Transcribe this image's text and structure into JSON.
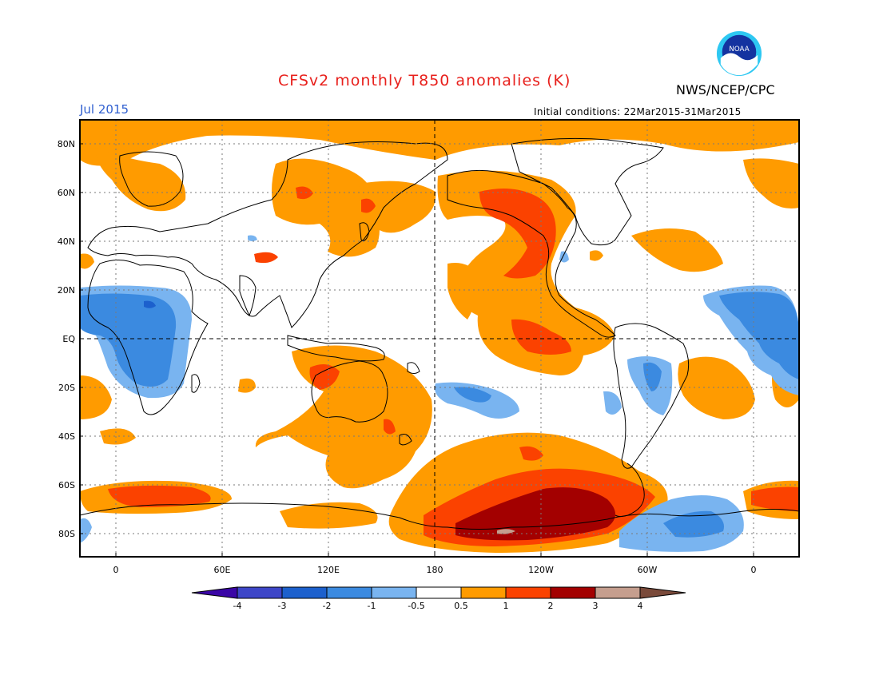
{
  "title": "CFSv2 monthly T850 anomalies (K)",
  "month": "Jul 2015",
  "agency": "NWS/NCEP/CPC",
  "initial_conditions": "Initial conditions: 22Mar2015-31Mar2015",
  "logo": {
    "text": "NOAA",
    "icon": "noaa-logo"
  },
  "lat_labels": [
    "80N",
    "60N",
    "40N",
    "20N",
    "EQ",
    "20S",
    "40S",
    "60S",
    "80S"
  ],
  "lon_labels": [
    "0",
    "60E",
    "120E",
    "180",
    "120W",
    "60W",
    "0"
  ],
  "legend": {
    "ticks": [
      "-4",
      "-3",
      "-2",
      "-1",
      "-0.5",
      "0.5",
      "1",
      "2",
      "3",
      "4"
    ],
    "colors": [
      "#3a06a6",
      "#3d46c8",
      "#1c60cd",
      "#3b8ae0",
      "#79b4f0",
      "#ffffff",
      "#ff9b00",
      "#fb4200",
      "#a30000",
      "#c59e8e",
      "#7a4a3a"
    ]
  },
  "colors": {
    "title": "#e8201c",
    "month": "#2f5fd0",
    "warm1": "#ff9b00",
    "warm2": "#fb4200",
    "warm3": "#a30000",
    "warm4": "#c59e8e",
    "cool1": "#79b4f0",
    "cool2": "#3b8ae0",
    "cool3": "#1c60cd"
  }
}
